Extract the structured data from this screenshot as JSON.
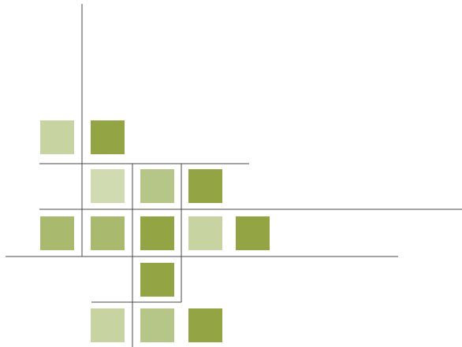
{
  "colors": {
    "background": "#ffffff",
    "line": "#4a4a4a",
    "tile_dark": "#93a444",
    "tile_mid": "#a9ba6f",
    "tile_soft": "#b6c588",
    "tile_light": "#c7d3a1",
    "tile_pale": "#d1dbb2"
  },
  "shapes": {
    "tiles": [
      {
        "name": "tile-r1-c1",
        "shade": "light"
      },
      {
        "name": "tile-r1-c2",
        "shade": "dark"
      },
      {
        "name": "tile-r2-c2",
        "shade": "pale"
      },
      {
        "name": "tile-r2-c3",
        "shade": "soft"
      },
      {
        "name": "tile-r2-c4",
        "shade": "dark"
      },
      {
        "name": "tile-r3-c1",
        "shade": "mid"
      },
      {
        "name": "tile-r3-c2",
        "shade": "mid"
      },
      {
        "name": "tile-r3-c3",
        "shade": "dark"
      },
      {
        "name": "tile-r3-c4",
        "shade": "light"
      },
      {
        "name": "tile-r3-c5",
        "shade": "dark"
      },
      {
        "name": "tile-r4-c3",
        "shade": "dark"
      },
      {
        "name": "tile-r5-c2",
        "shade": "light"
      },
      {
        "name": "tile-r5-c3",
        "shade": "soft"
      },
      {
        "name": "tile-r5-c4",
        "shade": "dark"
      }
    ],
    "lines": [
      {
        "name": "vertical-line-main"
      },
      {
        "name": "vertical-line-col3"
      },
      {
        "name": "vertical-line-col4"
      },
      {
        "name": "horizontal-line-upper"
      },
      {
        "name": "horizontal-line-wide"
      },
      {
        "name": "horizontal-line-lower"
      },
      {
        "name": "horizontal-line-bottom"
      }
    ]
  }
}
